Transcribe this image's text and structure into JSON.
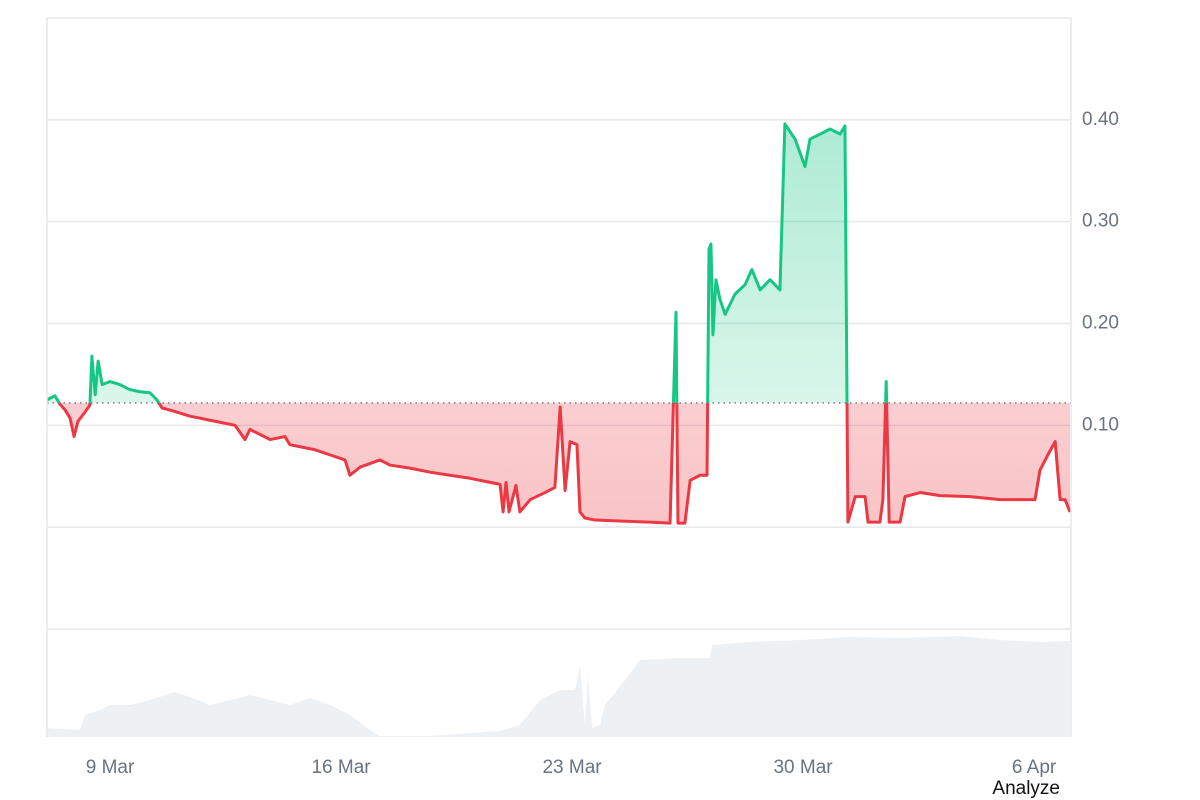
{
  "chart_data": {
    "type": "line",
    "baseline": 0.122,
    "color_above": "#16c784",
    "color_below": "#ea3943",
    "volume_color": "#eef1f4",
    "x": [
      -1.91,
      -1.67,
      -1.52,
      -1.36,
      -1.21,
      -1.09,
      -0.97,
      -0.76,
      -0.61,
      -0.55,
      -0.45,
      -0.36,
      -0.24,
      0,
      0.3,
      0.61,
      0.91,
      1.21,
      1.42,
      1.58,
      1.82,
      2.12,
      2.42,
      2.73,
      3.03,
      3.33,
      3.79,
      4.09,
      4.24,
      4.55,
      4.85,
      5.3,
      5.45,
      5.76,
      6.21,
      6.67,
      7.12,
      7.27,
      7.58,
      8.18,
      8.48,
      9.09,
      9.7,
      10.3,
      10.91,
      11.52,
      11.82,
      11.91,
      12.0,
      12.09,
      12.3,
      12.42,
      12.73,
      13.18,
      13.48,
      13.64,
      13.79,
      13.94,
      14.15,
      14.24,
      14.39,
      14.7,
      15.45,
      16.36,
      16.97,
      17.15,
      17.21,
      17.42,
      17.58,
      17.88,
      18.09,
      18.15,
      18.21,
      18.27,
      18.36,
      18.48,
      18.64,
      18.94,
      19.24,
      19.45,
      19.7,
      20.0,
      20.3,
      20.45,
      20.76,
      21.06,
      21.21,
      21.52,
      21.82,
      22.12,
      22.27,
      22.36,
      22.58,
      22.88,
      22.97,
      23.33,
      23.42,
      23.52,
      23.61,
      23.94,
      24.09,
      24.55,
      25.15,
      26.06,
      26.97,
      28.03,
      28.18,
      28.42,
      28.64,
      28.79,
      28.94,
      29.09
    ],
    "values": [
      0.125,
      0.129,
      0.121,
      0.115,
      0.107,
      0.089,
      0.104,
      0.113,
      0.12,
      0.168,
      0.13,
      0.163,
      0.14,
      0.143,
      0.14,
      0.135,
      0.133,
      0.132,
      0.125,
      0.117,
      0.115,
      0.112,
      0.109,
      0.107,
      0.105,
      0.103,
      0.1,
      0.086,
      0.096,
      0.091,
      0.086,
      0.089,
      0.081,
      0.079,
      0.076,
      0.071,
      0.066,
      0.051,
      0.059,
      0.066,
      0.061,
      0.058,
      0.054,
      0.051,
      0.048,
      0.044,
      0.042,
      0.015,
      0.044,
      0.015,
      0.041,
      0.015,
      0.027,
      0.034,
      0.039,
      0.118,
      0.036,
      0.084,
      0.081,
      0.015,
      0.009,
      0.007,
      0.006,
      0.005,
      0.004,
      0.211,
      0.004,
      0.004,
      0.046,
      0.051,
      0.051,
      0.273,
      0.278,
      0.189,
      0.243,
      0.224,
      0.209,
      0.229,
      0.238,
      0.253,
      0.233,
      0.243,
      0.233,
      0.396,
      0.381,
      0.354,
      0.381,
      0.386,
      0.391,
      0.386,
      0.394,
      0.005,
      0.03,
      0.03,
      0.005,
      0.005,
      0.027,
      0.143,
      0.005,
      0.005,
      0.03,
      0.034,
      0.031,
      0.03,
      0.027,
      0.027,
      0.056,
      0.071,
      0.084,
      0.027,
      0.027,
      0.015
    ],
    "volume": {
      "x": [
        -1.91,
        -0.91,
        -0.76,
        -0.3,
        0,
        0.61,
        1.21,
        1.97,
        2.42,
        3.03,
        3.64,
        4.24,
        4.85,
        5.45,
        6.06,
        6.67,
        7.27,
        7.88,
        8.18,
        9.7,
        11.82,
        12.42,
        13.03,
        13.64,
        14.09,
        14.24,
        14.39,
        14.48,
        14.61,
        14.85,
        15.0,
        15.61,
        16.06,
        17.27,
        18.18,
        18.24,
        19.39,
        20.91,
        22.42,
        23.94,
        25.76,
        26.97,
        28.18,
        29.09
      ],
      "values": [
        9,
        7,
        22,
        27,
        32,
        32,
        37,
        45,
        40,
        32,
        37,
        42,
        37,
        32,
        39,
        32,
        22,
        7,
        1,
        1,
        6,
        12,
        37,
        47,
        47,
        72,
        12,
        62,
        9,
        12,
        32,
        57,
        77,
        79,
        79,
        92,
        95,
        97,
        100,
        99,
        101,
        97,
        95,
        96
      ],
      "vlim": [
        0,
        108
      ]
    },
    "xlim": [
      -1.91,
      29.12
    ],
    "xticks": [
      {
        "value": 0,
        "label": "9 Mar"
      },
      {
        "value": 7,
        "label": "16 Mar"
      },
      {
        "value": 14,
        "label": "23 Mar"
      },
      {
        "value": 21,
        "label": "30 Mar"
      },
      {
        "value": 28,
        "label": "6 Apr"
      }
    ],
    "ylim": [
      -0.1,
      0.5
    ],
    "yticks": [
      {
        "value": 0.1,
        "label": "0.10"
      },
      {
        "value": 0.2,
        "label": "0.20"
      },
      {
        "value": 0.3,
        "label": "0.30"
      },
      {
        "value": 0.4,
        "label": "0.40"
      }
    ],
    "grid": true,
    "link": "Analyze"
  }
}
